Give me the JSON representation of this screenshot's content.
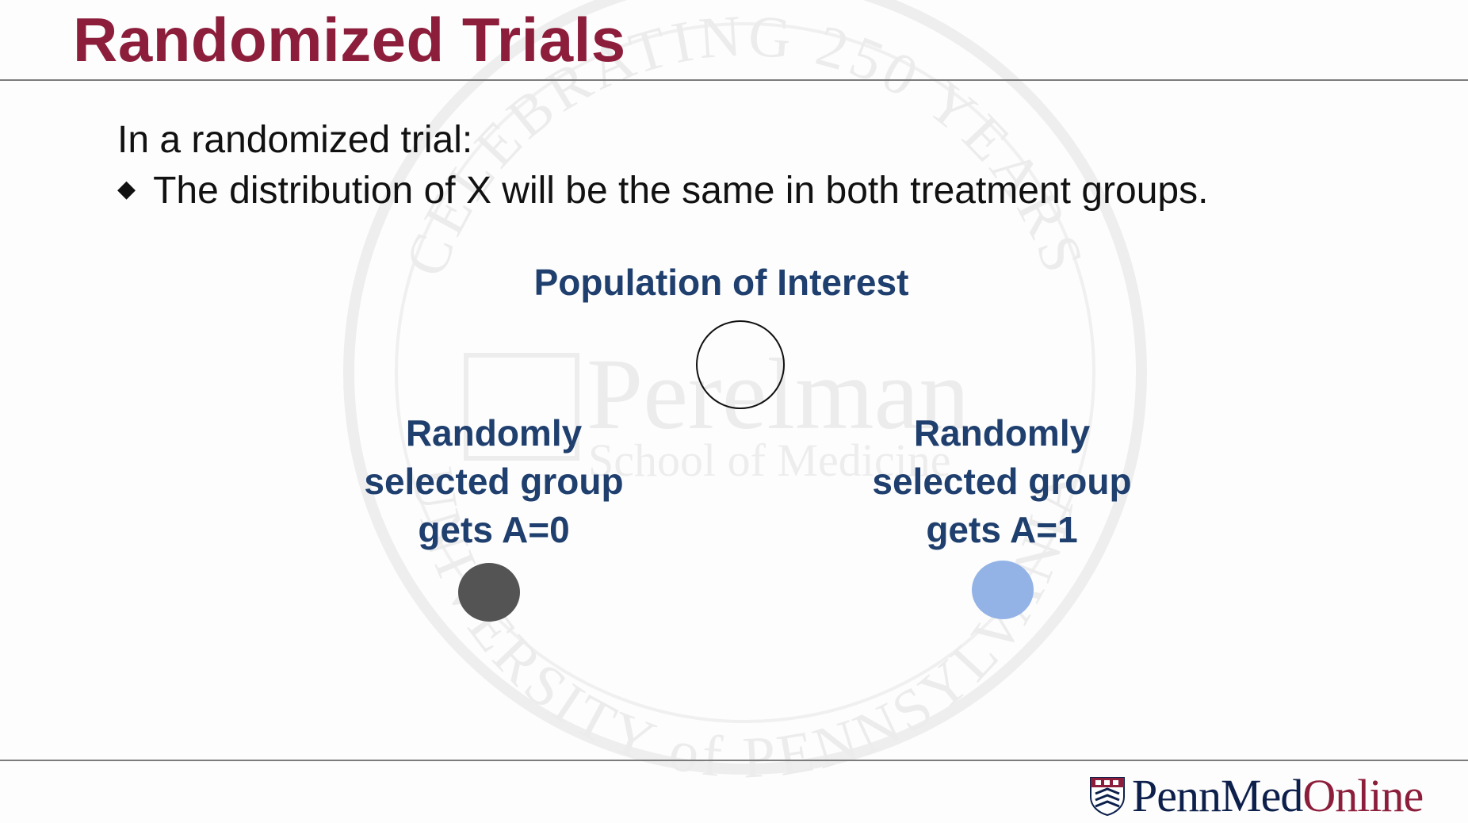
{
  "slide": {
    "title": "Randomized Trials",
    "intro": "In a randomized trial:",
    "bullets": [
      "The distribution of X will be the same in both treatment groups."
    ]
  },
  "diagram": {
    "population_label": "Population of Interest",
    "groups": [
      {
        "lines": [
          "Randomly",
          "selected group",
          "gets A=0"
        ],
        "color": "#545454"
      },
      {
        "lines": [
          "Randomly",
          "selected group",
          "gets A=1"
        ],
        "color": "#93b3e7"
      }
    ]
  },
  "watermark": {
    "arc_top": "CELEBRATING 250 YEARS",
    "arc_bottom": "UNIVERSITY of PENNSYLVANIA",
    "center_title": "Perelman",
    "center_subtitle": "School of Medicine"
  },
  "logo": {
    "text_part1": "PennMed",
    "text_part2": "Online"
  },
  "colors": {
    "title": "#8c1d3b",
    "diagram_text": "#1f3f6e",
    "logo_navy": "#0d1f4b",
    "logo_red": "#8c1d3b"
  }
}
